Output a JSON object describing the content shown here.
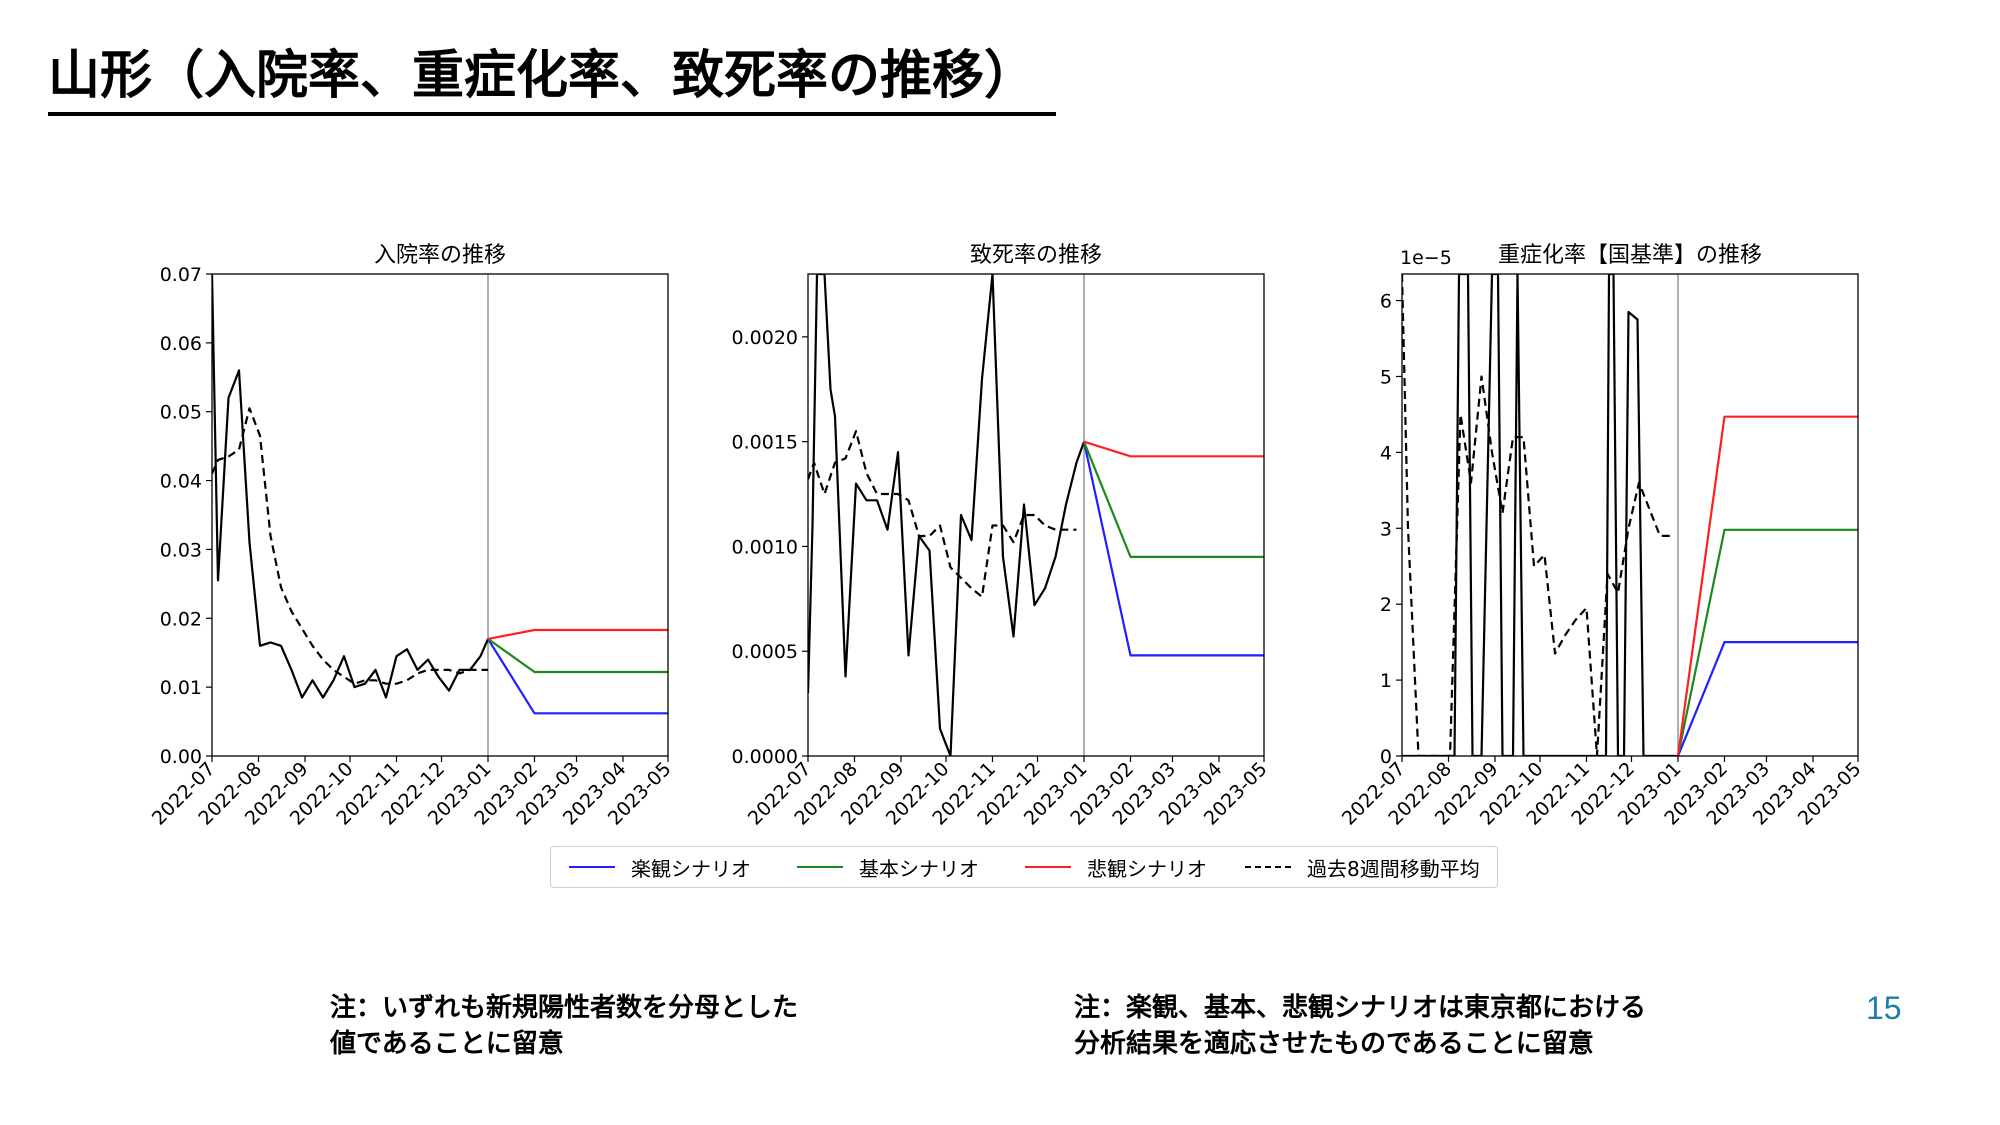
{
  "slide": {
    "title": "山形（入院率、重症化率、致死率の推移）",
    "note_left": [
      "注：いずれも新規陽性者数を分母とした",
      "値であることに留意"
    ],
    "note_right": [
      "注：楽観、基本、悲観シナリオは東京都における",
      "分析結果を適応させたものであることに留意"
    ],
    "page_number": "15"
  },
  "legend": [
    {
      "label": "楽観シナリオ",
      "color": "#1f1fff",
      "style": "solid"
    },
    {
      "label": "基本シナリオ",
      "color": "#1a8a1a",
      "style": "solid"
    },
    {
      "label": "悲観シナリオ",
      "color": "#ff2020",
      "style": "solid"
    },
    {
      "label": "過去8週間移動平均",
      "color": "#000000",
      "style": "dashed"
    }
  ],
  "chart_data": [
    {
      "type": "line",
      "title": "入院率の推移",
      "x_ticks": [
        "2022-07",
        "2022-08",
        "2022-09",
        "2022-10",
        "2022-11",
        "2022-12",
        "2023-01",
        "2023-02",
        "2023-03",
        "2023-04",
        "2023-05"
      ],
      "y_ticks": [
        "0.00",
        "0.01",
        "0.02",
        "0.03",
        "0.04",
        "0.05",
        "0.06",
        "0.07"
      ],
      "ylim": [
        0,
        0.07
      ],
      "xlim": [
        "2022-07-01",
        "2023-05-01"
      ],
      "vline": "2023-01-01",
      "scale_label": "",
      "series": [
        {
          "kind": "actual",
          "color": "#000000",
          "dashed": false,
          "x": [
            "2022-07-01",
            "2022-07-05",
            "2022-07-12",
            "2022-07-19",
            "2022-07-26",
            "2022-08-02",
            "2022-08-09",
            "2022-08-16",
            "2022-08-23",
            "2022-08-30",
            "2022-09-06",
            "2022-09-13",
            "2022-09-20",
            "2022-09-27",
            "2022-10-04",
            "2022-10-11",
            "2022-10-18",
            "2022-10-25",
            "2022-11-01",
            "2022-11-08",
            "2022-11-15",
            "2022-11-22",
            "2022-11-29",
            "2022-12-06",
            "2022-12-13",
            "2022-12-20",
            "2022-12-27",
            "2023-01-01"
          ],
          "y": [
            0.07,
            0.0255,
            0.052,
            0.056,
            0.031,
            0.016,
            0.0165,
            0.016,
            0.0125,
            0.0085,
            0.011,
            0.0085,
            0.011,
            0.0145,
            0.01,
            0.0105,
            0.0125,
            0.0085,
            0.0145,
            0.0155,
            0.0125,
            0.014,
            0.0115,
            0.0095,
            0.0125,
            0.0125,
            0.0145,
            0.017
          ]
        },
        {
          "kind": "moving_average",
          "color": "#000000",
          "dashed": true,
          "x": [
            "2022-07-01",
            "2022-07-05",
            "2022-07-12",
            "2022-07-19",
            "2022-07-26",
            "2022-08-02",
            "2022-08-09",
            "2022-08-16",
            "2022-08-23",
            "2022-08-30",
            "2022-09-06",
            "2022-09-13",
            "2022-09-20",
            "2022-09-27",
            "2022-10-04",
            "2022-10-11",
            "2022-10-18",
            "2022-10-25",
            "2022-11-01",
            "2022-11-08",
            "2022-11-15",
            "2022-11-22",
            "2022-11-29",
            "2022-12-06",
            "2022-12-13",
            "2022-12-20",
            "2022-12-27",
            "2023-01-01"
          ],
          "y": [
            0.041,
            0.043,
            0.0435,
            0.0445,
            0.0505,
            0.0465,
            0.032,
            0.0245,
            0.021,
            0.0185,
            0.016,
            0.014,
            0.0125,
            0.0115,
            0.0105,
            0.011,
            0.011,
            0.0105,
            0.0105,
            0.011,
            0.012,
            0.0125,
            0.0125,
            0.0125,
            0.012,
            0.0125,
            0.0125,
            0.0125
          ]
        },
        {
          "kind": "optimistic",
          "color": "#1f1fff",
          "dashed": false,
          "x": [
            "2023-01-01",
            "2023-02-01",
            "2023-05-01"
          ],
          "y": [
            0.017,
            0.0062,
            0.0062
          ]
        },
        {
          "kind": "base",
          "color": "#1a8a1a",
          "dashed": false,
          "x": [
            "2023-01-01",
            "2023-02-01",
            "2023-05-01"
          ],
          "y": [
            0.017,
            0.0122,
            0.0122
          ]
        },
        {
          "kind": "pessimistic",
          "color": "#ff2020",
          "dashed": false,
          "x": [
            "2023-01-01",
            "2023-02-01",
            "2023-05-01"
          ],
          "y": [
            0.017,
            0.0183,
            0.0183
          ]
        }
      ]
    },
    {
      "type": "line",
      "title": "致死率の推移",
      "x_ticks": [
        "2022-07",
        "2022-08",
        "2022-09",
        "2022-10",
        "2022-11",
        "2022-12",
        "2023-01",
        "2023-02",
        "2023-03",
        "2023-04",
        "2023-05"
      ],
      "y_ticks": [
        "0.0000",
        "0.0005",
        "0.0010",
        "0.0015",
        "0.0020"
      ],
      "ylim": [
        0,
        0.0023
      ],
      "xlim": [
        "2022-07-01",
        "2023-05-01"
      ],
      "vline": "2023-01-01",
      "scale_label": "",
      "series": [
        {
          "kind": "actual",
          "color": "#000000",
          "dashed": false,
          "x": [
            "2022-07-01",
            "2022-07-04",
            "2022-07-07",
            "2022-07-12",
            "2022-07-16",
            "2022-07-19",
            "2022-07-26",
            "2022-08-02",
            "2022-08-09",
            "2022-08-16",
            "2022-08-23",
            "2022-08-30",
            "2022-09-06",
            "2022-09-13",
            "2022-09-20",
            "2022-09-27",
            "2022-10-04",
            "2022-10-11",
            "2022-10-18",
            "2022-10-25",
            "2022-11-01",
            "2022-11-08",
            "2022-11-15",
            "2022-11-22",
            "2022-11-29",
            "2022-12-06",
            "2022-12-13",
            "2022-12-20",
            "2022-12-27",
            "2023-01-01"
          ],
          "y": [
            0.0003,
            0.0011,
            0.0023,
            0.0023,
            0.00175,
            0.00162,
            0.00038,
            0.0013,
            0.00122,
            0.00122,
            0.00108,
            0.00145,
            0.00048,
            0.00105,
            0.00098,
            0.00013,
            0.0,
            0.00115,
            0.00103,
            0.0018,
            0.0023,
            0.00095,
            0.00057,
            0.0012,
            0.00072,
            0.0008,
            0.00095,
            0.0012,
            0.0014,
            0.0015
          ]
        },
        {
          "kind": "moving_average",
          "color": "#000000",
          "dashed": true,
          "x": [
            "2022-07-01",
            "2022-07-05",
            "2022-07-12",
            "2022-07-19",
            "2022-07-26",
            "2022-08-02",
            "2022-08-09",
            "2022-08-16",
            "2022-08-23",
            "2022-08-30",
            "2022-09-06",
            "2022-09-13",
            "2022-09-20",
            "2022-09-27",
            "2022-10-04",
            "2022-10-11",
            "2022-10-18",
            "2022-10-25",
            "2022-11-01",
            "2022-11-08",
            "2022-11-15",
            "2022-11-22",
            "2022-11-29",
            "2022-12-06",
            "2022-12-13",
            "2022-12-20",
            "2022-12-27"
          ],
          "y": [
            0.00132,
            0.0014,
            0.00125,
            0.0014,
            0.00142,
            0.00155,
            0.00135,
            0.00125,
            0.00125,
            0.00125,
            0.00122,
            0.00105,
            0.00105,
            0.0011,
            0.0009,
            0.00085,
            0.0008,
            0.00076,
            0.0011,
            0.0011,
            0.00102,
            0.00115,
            0.00115,
            0.0011,
            0.00108,
            0.00108,
            0.00108
          ]
        },
        {
          "kind": "optimistic",
          "color": "#1f1fff",
          "dashed": false,
          "x": [
            "2023-01-01",
            "2023-02-01",
            "2023-05-01"
          ],
          "y": [
            0.0015,
            0.00048,
            0.00048
          ]
        },
        {
          "kind": "base",
          "color": "#1a8a1a",
          "dashed": false,
          "x": [
            "2023-01-01",
            "2023-02-01",
            "2023-05-01"
          ],
          "y": [
            0.0015,
            0.00095,
            0.00095
          ]
        },
        {
          "kind": "pessimistic",
          "color": "#ff2020",
          "dashed": false,
          "x": [
            "2023-01-01",
            "2023-02-01",
            "2023-05-01"
          ],
          "y": [
            0.0015,
            0.00143,
            0.00143
          ]
        }
      ]
    },
    {
      "type": "line",
      "title": "重症化率【国基準】の推移",
      "x_ticks": [
        "2022-07",
        "2022-08",
        "2022-09",
        "2022-10",
        "2022-11",
        "2022-12",
        "2023-01",
        "2023-02",
        "2023-03",
        "2023-04",
        "2023-05"
      ],
      "y_ticks": [
        "0",
        "1",
        "2",
        "3",
        "4",
        "5",
        "6"
      ],
      "ylim": [
        0,
        6.35
      ],
      "xlim": [
        "2022-07-01",
        "2023-05-01"
      ],
      "vline": "2023-01-01",
      "scale_label": "1e−5",
      "series": [
        {
          "kind": "actual",
          "color": "#000000",
          "dashed": false,
          "x": [
            "2022-07-01",
            "2022-08-05",
            "2022-08-08",
            "2022-08-14",
            "2022-08-17",
            "2022-08-23",
            "2022-08-30",
            "2022-09-03",
            "2022-09-06",
            "2022-09-13",
            "2022-09-16",
            "2022-09-20",
            "2022-11-14",
            "2022-11-16",
            "2022-11-19",
            "2022-11-22",
            "2022-11-26",
            "2022-11-29",
            "2022-12-05",
            "2022-12-09",
            "2022-12-27",
            "2023-01-01"
          ],
          "y": [
            0,
            0,
            6.35,
            6.35,
            0,
            0,
            6.35,
            6.35,
            0,
            0,
            6.35,
            0,
            0,
            6.35,
            6.35,
            0,
            0,
            5.85,
            5.75,
            0,
            0,
            0
          ]
        },
        {
          "kind": "moving_average",
          "color": "#000000",
          "dashed": true,
          "x": [
            "2022-07-01",
            "2022-07-05",
            "2022-07-12",
            "2022-07-19",
            "2022-07-26",
            "2022-08-02",
            "2022-08-09",
            "2022-08-16",
            "2022-08-23",
            "2022-08-30",
            "2022-09-06",
            "2022-09-13",
            "2022-09-20",
            "2022-09-27",
            "2022-10-04",
            "2022-10-11",
            "2022-10-18",
            "2022-10-25",
            "2022-11-01",
            "2022-11-08",
            "2022-11-15",
            "2022-11-22",
            "2022-11-29",
            "2022-12-06",
            "2022-12-13",
            "2022-12-20",
            "2022-12-27"
          ],
          "y": [
            6.35,
            3.0,
            0,
            0,
            0,
            0,
            4.5,
            3.6,
            5.0,
            4.0,
            3.2,
            4.2,
            4.2,
            2.5,
            2.65,
            1.35,
            1.6,
            1.8,
            1.95,
            0,
            2.4,
            2.15,
            3.0,
            3.6,
            3.25,
            2.9,
            2.9
          ]
        },
        {
          "kind": "optimistic",
          "color": "#1f1fff",
          "dashed": false,
          "x": [
            "2023-01-01",
            "2023-02-01",
            "2023-05-01"
          ],
          "y": [
            0,
            1.5,
            1.5
          ]
        },
        {
          "kind": "base",
          "color": "#1a8a1a",
          "dashed": false,
          "x": [
            "2023-01-01",
            "2023-02-01",
            "2023-05-01"
          ],
          "y": [
            0,
            2.98,
            2.98
          ]
        },
        {
          "kind": "pessimistic",
          "color": "#ff2020",
          "dashed": false,
          "x": [
            "2023-01-01",
            "2023-02-01",
            "2023-05-01"
          ],
          "y": [
            0,
            4.47,
            4.47
          ]
        }
      ]
    }
  ]
}
